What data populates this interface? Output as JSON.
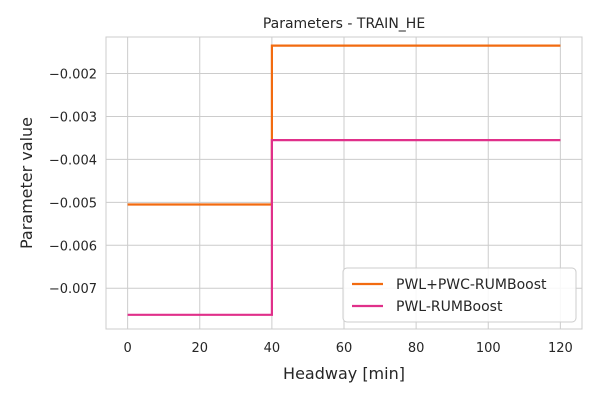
{
  "chart_data": {
    "type": "line",
    "title": "Parameters - TRAIN_HE",
    "xlabel": "Headway [min]",
    "ylabel": "Parameter value",
    "xlim": [
      -6,
      126
    ],
    "ylim": [
      -0.00795,
      -0.00115
    ],
    "xticks": [
      0,
      20,
      40,
      60,
      80,
      100,
      120
    ],
    "xtick_labels": [
      "0",
      "20",
      "40",
      "60",
      "80",
      "100",
      "120"
    ],
    "yticks": [
      -0.007,
      -0.006,
      -0.005,
      -0.004,
      -0.003,
      -0.002
    ],
    "ytick_labels": [
      "−0.007",
      "−0.006",
      "−0.005",
      "−0.004",
      "−0.003",
      "−0.002"
    ],
    "grid": true,
    "legend_position": "lower-right",
    "series": [
      {
        "name": "PWL+PWC-RUMBoost",
        "color": "#f26b10",
        "x": [
          0,
          40,
          40,
          120
        ],
        "y": [
          -0.00505,
          -0.00505,
          -0.00135,
          -0.00135
        ]
      },
      {
        "name": "PWL-RUMBoost",
        "color": "#e0308a",
        "x": [
          0,
          40,
          40,
          120
        ],
        "y": [
          -0.00762,
          -0.00762,
          -0.00355,
          -0.00355
        ]
      }
    ]
  }
}
